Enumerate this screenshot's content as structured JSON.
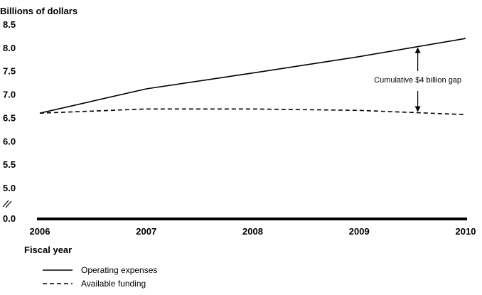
{
  "chart_data": {
    "type": "line",
    "ylabel": "Billions of dollars",
    "xlabel": "Fiscal year",
    "x": [
      2006,
      2007,
      2008,
      2009,
      2010
    ],
    "x_tick_labels": [
      "2006",
      "2007",
      "2008",
      "2009",
      "2010"
    ],
    "y_tick_labels": [
      "0.0",
      "5.0",
      "5.5",
      "6.0",
      "6.5",
      "7.0",
      "7.5",
      "8.0",
      "8.5"
    ],
    "y_ticks": [
      0.0,
      5.0,
      5.5,
      6.0,
      6.5,
      7.0,
      7.5,
      8.0,
      8.5
    ],
    "axis_break": "between 0.0 and 5.0",
    "ylim": [
      5.0,
      8.5
    ],
    "grid": false,
    "legend_position": "bottom-left",
    "series": [
      {
        "name": "Operating expenses",
        "style": "solid",
        "values": [
          6.61,
          7.13,
          7.47,
          7.82,
          8.21
        ]
      },
      {
        "name": "Available funding",
        "style": "dashed",
        "values": [
          6.61,
          6.7,
          6.7,
          6.67,
          6.58
        ]
      }
    ],
    "annotation": {
      "text": "Cumulative $4 billion gap",
      "x": 2009.55
    }
  }
}
